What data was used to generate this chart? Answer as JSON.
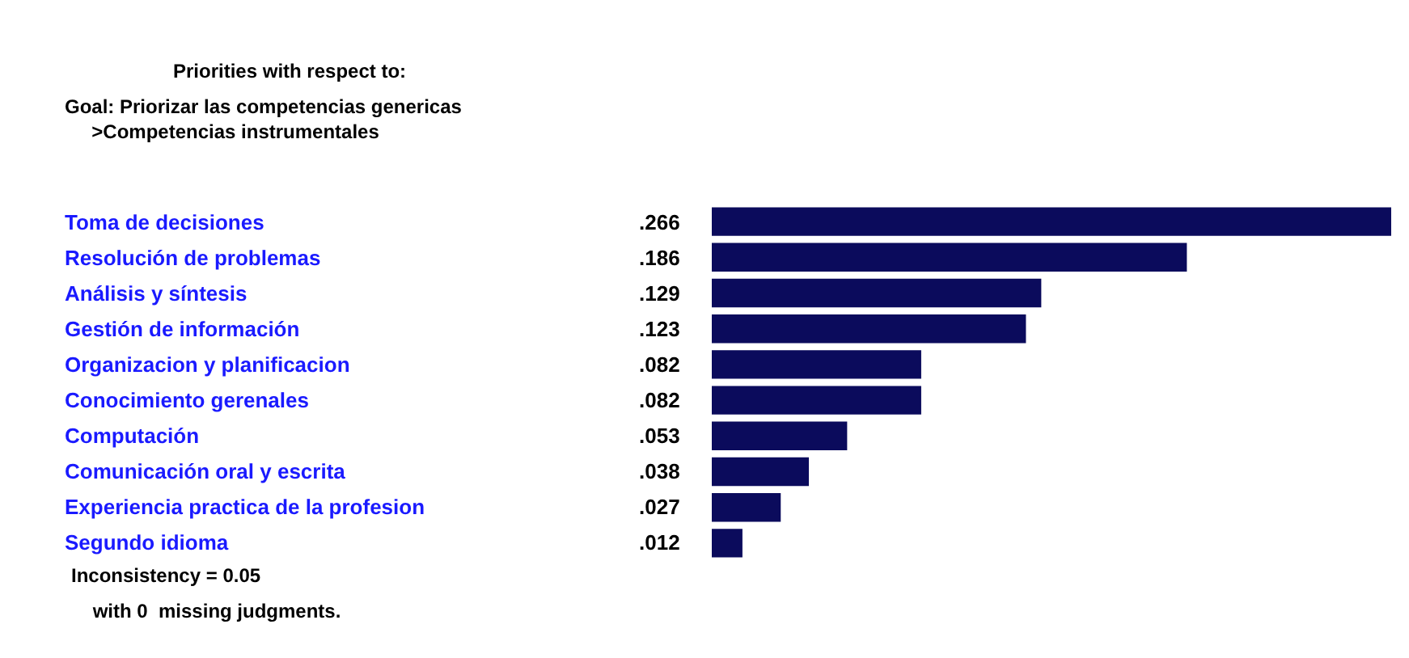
{
  "chart_data": {
    "type": "bar",
    "orientation": "horizontal",
    "title": "Priorities with respect to:",
    "subtitle": "Goal: Priorizar las competencias genericas\n     >Competencias instrumentales",
    "categories": [
      "Toma de decisiones",
      "Resolución de problemas",
      "Análisis y síntesis",
      "Gestión de información",
      "Organizacion y planificacion",
      "Conocimiento gerenales",
      "Computación",
      "Comunicación oral y escrita",
      "Experiencia practica de la profesion",
      "Segundo idioma"
    ],
    "values": [
      0.266,
      0.186,
      0.129,
      0.123,
      0.082,
      0.082,
      0.053,
      0.038,
      0.027,
      0.012
    ],
    "value_labels": [
      ".266",
      ".186",
      ".129",
      ".123",
      ".082",
      ".082",
      ".053",
      ".038",
      ".027",
      ".012"
    ],
    "color": "#0b0b5c",
    "annotations": [
      "Inconsistency = 0.05",
      "    with 0  missing judgments."
    ]
  }
}
